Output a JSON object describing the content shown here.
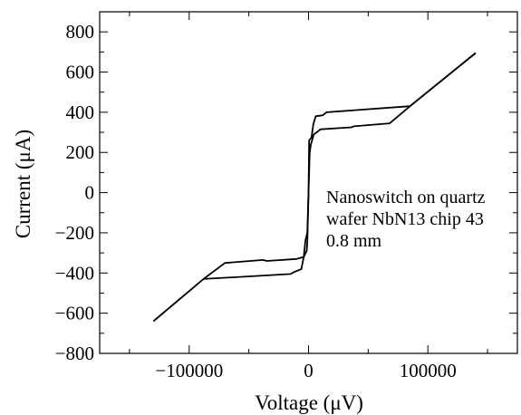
{
  "chart_data": {
    "type": "line",
    "title": "",
    "xlabel": "Voltage  (μV)",
    "ylabel": "Current  (μA)",
    "xlim": [
      -175000,
      175000
    ],
    "ylim": [
      -800,
      900
    ],
    "x_ticks": [
      -100000,
      0,
      100000
    ],
    "x_tick_labels": [
      "−100000",
      "0",
      "100000"
    ],
    "y_ticks": [
      -800,
      -600,
      -400,
      -200,
      0,
      200,
      400,
      600,
      800
    ],
    "y_tick_labels": [
      "−800",
      "−600",
      "−400",
      "−200",
      "0",
      "200",
      "400",
      "600",
      "800"
    ],
    "grid": false,
    "legend": "none",
    "annotation": [
      "Nanoswitch on quartz",
      "wafer NbN13 chip 43",
      "0.8 mm"
    ],
    "line_color": "#000000",
    "series": [
      {
        "values": [
          [
            -130000,
            -640
          ],
          [
            -88000,
            -430
          ],
          [
            -15000,
            -405
          ],
          [
            -12000,
            -395
          ],
          [
            -6000,
            -380
          ],
          [
            -4000,
            -320
          ],
          [
            -1500,
            -290
          ],
          [
            -1000,
            -240
          ],
          [
            0,
            0
          ],
          [
            500,
            260
          ],
          [
            2500,
            275
          ],
          [
            4000,
            340
          ],
          [
            6000,
            380
          ],
          [
            12000,
            385
          ],
          [
            15000,
            400
          ],
          [
            85000,
            430
          ],
          [
            140000,
            695
          ]
        ]
      },
      {
        "values": [
          [
            140000,
            695
          ],
          [
            85000,
            430
          ],
          [
            68000,
            345
          ],
          [
            38000,
            330
          ],
          [
            36000,
            325
          ],
          [
            10000,
            315
          ],
          [
            8000,
            305
          ],
          [
            4500,
            290
          ],
          [
            2000,
            240
          ],
          [
            1000,
            200
          ],
          [
            0,
            0
          ],
          [
            -1000,
            -200
          ],
          [
            -2500,
            -235
          ],
          [
            -4000,
            -320
          ],
          [
            -10000,
            -330
          ],
          [
            -35000,
            -340
          ],
          [
            -38000,
            -335
          ],
          [
            -70000,
            -350
          ],
          [
            -88000,
            -430
          ]
        ]
      }
    ]
  }
}
